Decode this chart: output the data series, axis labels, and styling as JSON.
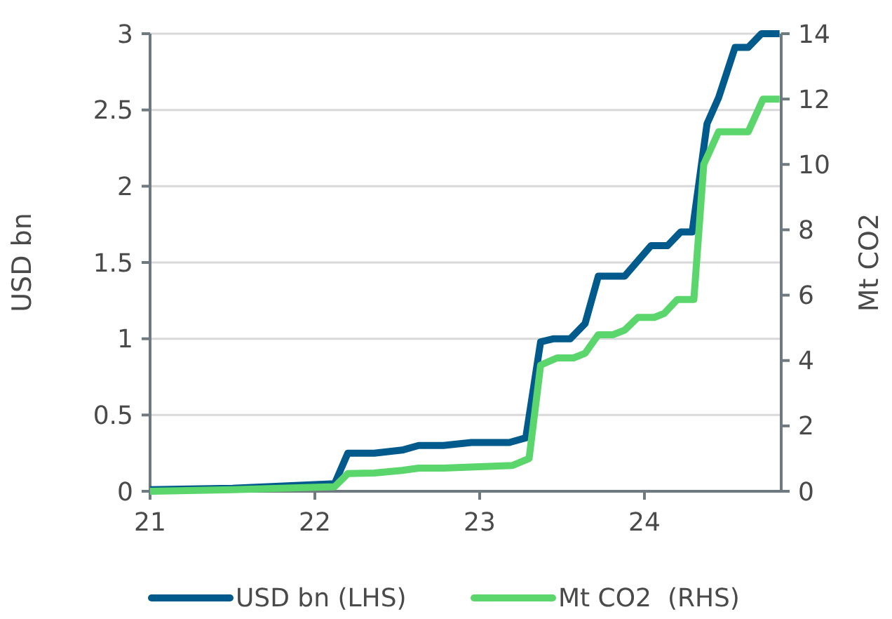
{
  "chart_data": {
    "type": "line",
    "ylabel": "USD bn",
    "y2label": "Mt CO2",
    "xlim": [
      21,
      24.83
    ],
    "xticks": [
      21,
      22,
      23,
      24
    ],
    "ylim": [
      0,
      3
    ],
    "yticks": [
      0,
      0.5,
      1,
      1.5,
      2,
      2.5,
      3
    ],
    "y2lim": [
      0,
      14
    ],
    "y2ticks": [
      0,
      2,
      4,
      6,
      8,
      10,
      12,
      14
    ],
    "grid": "y",
    "legend": "bottom",
    "line_style": "solid",
    "marker": "none",
    "series": [
      {
        "name": "USD bn (LHS)",
        "color": "#005a8c",
        "x": [
          21,
          21.5,
          22.12,
          22.2,
          22.36,
          22.53,
          22.63,
          22.78,
          22.95,
          23.18,
          23.28,
          23.37,
          23.45,
          23.55,
          23.64,
          23.72,
          23.88,
          24.04,
          24.14,
          24.22,
          24.29,
          24.38,
          24.45,
          24.55,
          24.63,
          24.71,
          24.82
        ],
        "values": [
          0.01,
          0.02,
          0.05,
          0.25,
          0.25,
          0.27,
          0.3,
          0.3,
          0.32,
          0.32,
          0.35,
          0.98,
          1.0,
          1.0,
          1.1,
          1.41,
          1.41,
          1.61,
          1.61,
          1.7,
          1.7,
          2.41,
          2.58,
          2.91,
          2.91,
          3.0,
          3.0
        ]
      },
      {
        "name": "Mt CO2  (RHS)",
        "color": "#5ad66c",
        "axis": "y2",
        "x": [
          21,
          21.5,
          22.12,
          22.2,
          22.36,
          22.53,
          22.63,
          22.78,
          23.0,
          23.2,
          23.3,
          23.37,
          23.47,
          23.57,
          23.64,
          23.72,
          23.81,
          23.88,
          23.96,
          24.06,
          24.12,
          24.2,
          24.3,
          24.36,
          24.45,
          24.63,
          24.72,
          24.82
        ],
        "values": [
          0.0,
          0.05,
          0.14,
          0.54,
          0.56,
          0.64,
          0.71,
          0.71,
          0.75,
          0.79,
          1.0,
          3.86,
          4.08,
          4.08,
          4.22,
          4.79,
          4.79,
          4.93,
          5.32,
          5.32,
          5.44,
          5.87,
          5.87,
          10.0,
          11.0,
          11.0,
          12.0,
          12.0
        ]
      }
    ]
  }
}
